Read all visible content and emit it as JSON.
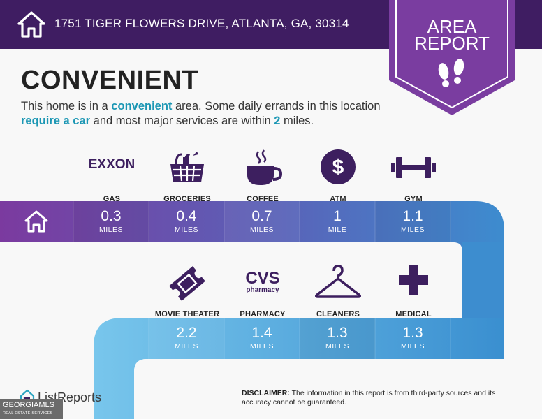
{
  "header": {
    "address": "1751 TIGER FLOWERS DRIVE, ATLANTA, GA, 30314",
    "home_icon": "home-icon"
  },
  "badge": {
    "line1": "AREA",
    "line2": "REPORT",
    "icon": "footsteps-icon"
  },
  "headline": "CONVENIENT",
  "description": {
    "p1": "This home is in a ",
    "hl1": "convenient",
    "p2": " area. Some daily errands in this location ",
    "hl2": "require a car",
    "p3": " and most major services are within ",
    "hl3": "2",
    "p4": " miles."
  },
  "services_row1": [
    {
      "label": "GAS",
      "icon": "exxon-logo-icon",
      "logo_text": "EXXON",
      "distance": "0.3",
      "unit": "MILES"
    },
    {
      "label": "GROCERIES",
      "icon": "grocery-basket-icon",
      "distance": "0.4",
      "unit": "MILES"
    },
    {
      "label": "COFFEE",
      "icon": "coffee-cup-icon",
      "distance": "0.7",
      "unit": "MILES"
    },
    {
      "label": "ATM",
      "icon": "dollar-icon",
      "distance": "1",
      "unit": "MILE"
    },
    {
      "label": "GYM",
      "icon": "dumbbell-icon",
      "distance": "1.1",
      "unit": "MILES"
    }
  ],
  "services_row2": [
    {
      "label": "MOVIE THEATER",
      "icon": "ticket-icon",
      "distance": "2.2",
      "unit": "MILES"
    },
    {
      "label": "PHARMACY",
      "icon": "cvs-logo-icon",
      "logo_text": "CVS",
      "logo_sub": "pharmacy",
      "distance": "1.4",
      "unit": "MILES"
    },
    {
      "label": "CLEANERS",
      "icon": "hanger-icon",
      "distance": "1.3",
      "unit": "MILES"
    },
    {
      "label": "MEDICAL",
      "icon": "medical-cross-icon",
      "distance": "1.3",
      "unit": "MILES"
    }
  ],
  "footer": {
    "brand": "ListReports",
    "mls_name": "GEORGIAMLS",
    "mls_sub": "REAL ESTATE SERVICES",
    "disclaimer_label": "DISCLAIMER:",
    "disclaimer_text": " The information in this report is from third-party sources and its accuracy cannot be guaranteed."
  },
  "colors": {
    "header_bg": "#3f1d62",
    "badge": "#7a3da0",
    "accent_text": "#1c97b4",
    "icon_purple": "#3d1f5f",
    "path_start": "#7a3a9e",
    "path_mid": "#3b8fd0",
    "path_end": "#8ecbec"
  }
}
